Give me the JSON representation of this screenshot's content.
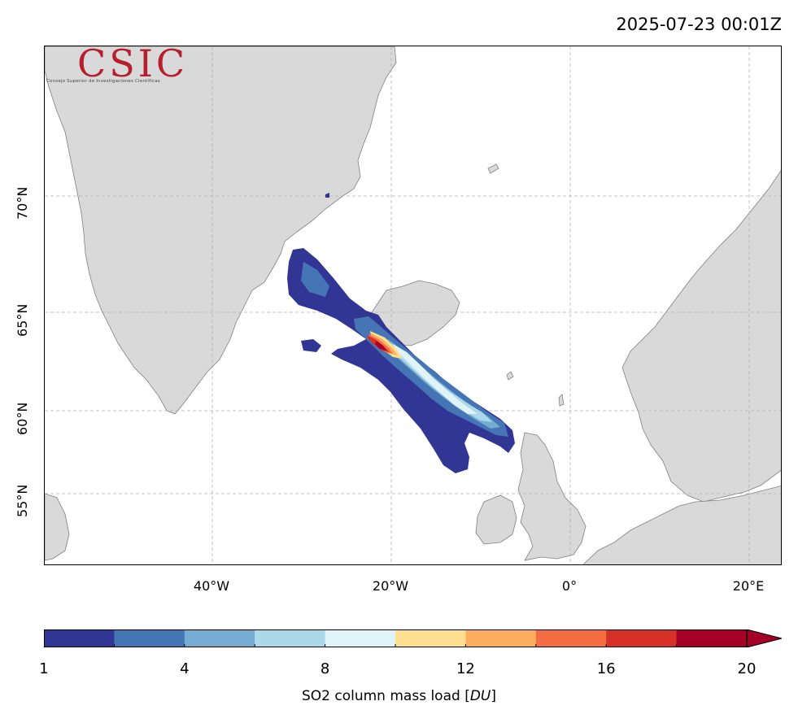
{
  "timestamp": "2025-07-23 00:01Z",
  "logo": {
    "text": "CSIC",
    "subtitle": "Consejo Superior de Investigaciones Científicas",
    "color": "#b51f2e"
  },
  "map": {
    "land_color": "#d9d9d9",
    "coast_color": "#808080",
    "grid_color": "#b0b0b0",
    "longitude_labels": [
      "40°W",
      "20°W",
      "0°",
      "20°E"
    ],
    "latitude_labels": [
      "70°N",
      "65°N",
      "60°N",
      "55°N"
    ]
  },
  "colorbar": {
    "levels": [
      1,
      2,
      4,
      6,
      8,
      10,
      12,
      14,
      16,
      18,
      20
    ],
    "colors": [
      "#313695",
      "#4575b4",
      "#74add1",
      "#abd9e9",
      "#e0f3f8",
      "#fee090",
      "#fdae61",
      "#f46d43",
      "#d73027",
      "#a50026"
    ],
    "tick_labels": [
      "1",
      "4",
      "8",
      "12",
      "16",
      "20"
    ],
    "label_prefix": "SO2 column mass load [",
    "label_unit": "DU",
    "label_suffix": "]",
    "extend": "max"
  }
}
